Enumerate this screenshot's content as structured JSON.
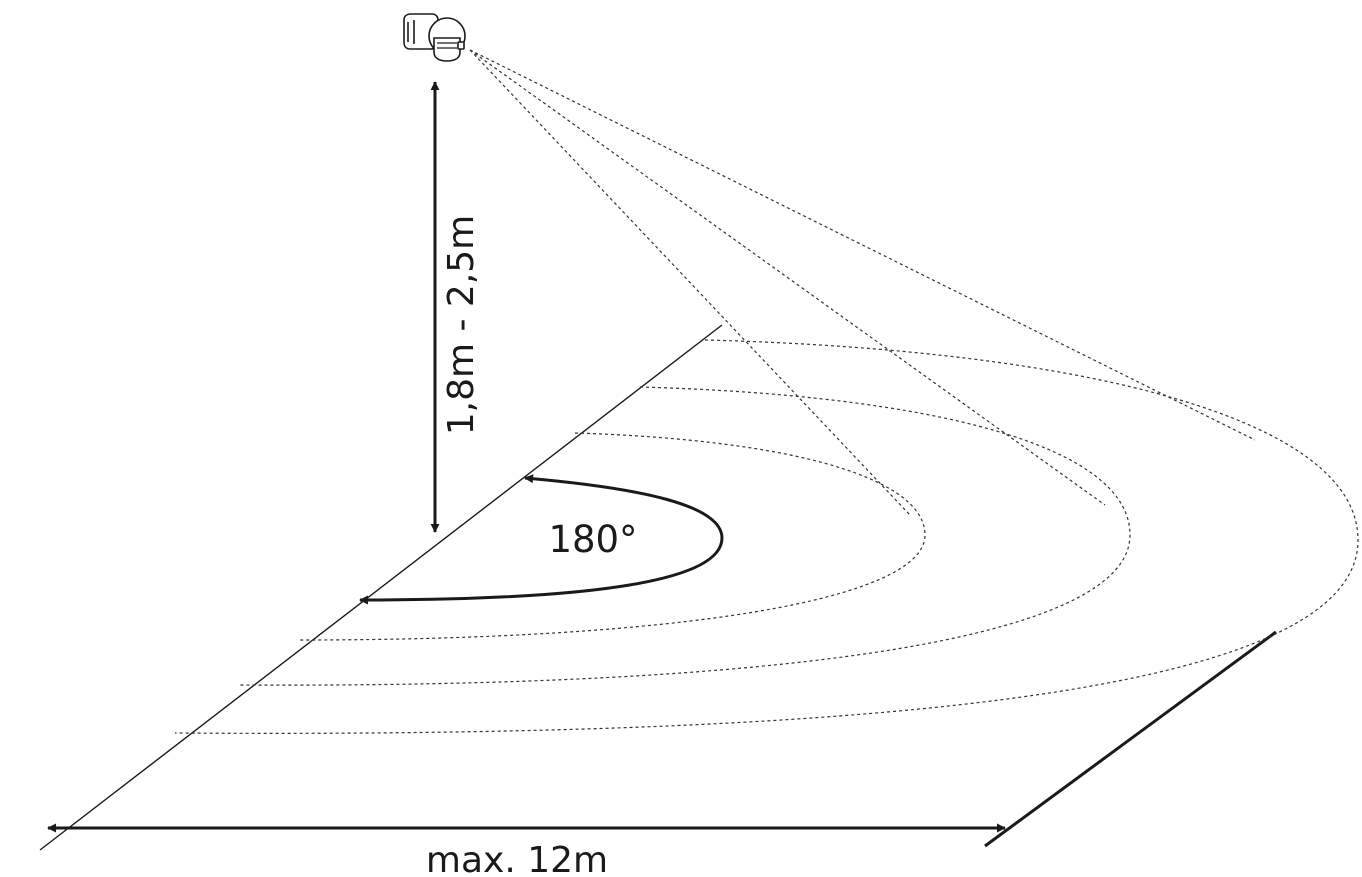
{
  "labels": {
    "height_range": "1,8m - 2,5m",
    "angle": "180°",
    "max_distance": "max. 12m"
  },
  "colors": {
    "ink": "#1a1a1a",
    "dashed": "#333333",
    "background": "#ffffff"
  },
  "icons": {
    "sensor": "motion-sensor-icon"
  }
}
